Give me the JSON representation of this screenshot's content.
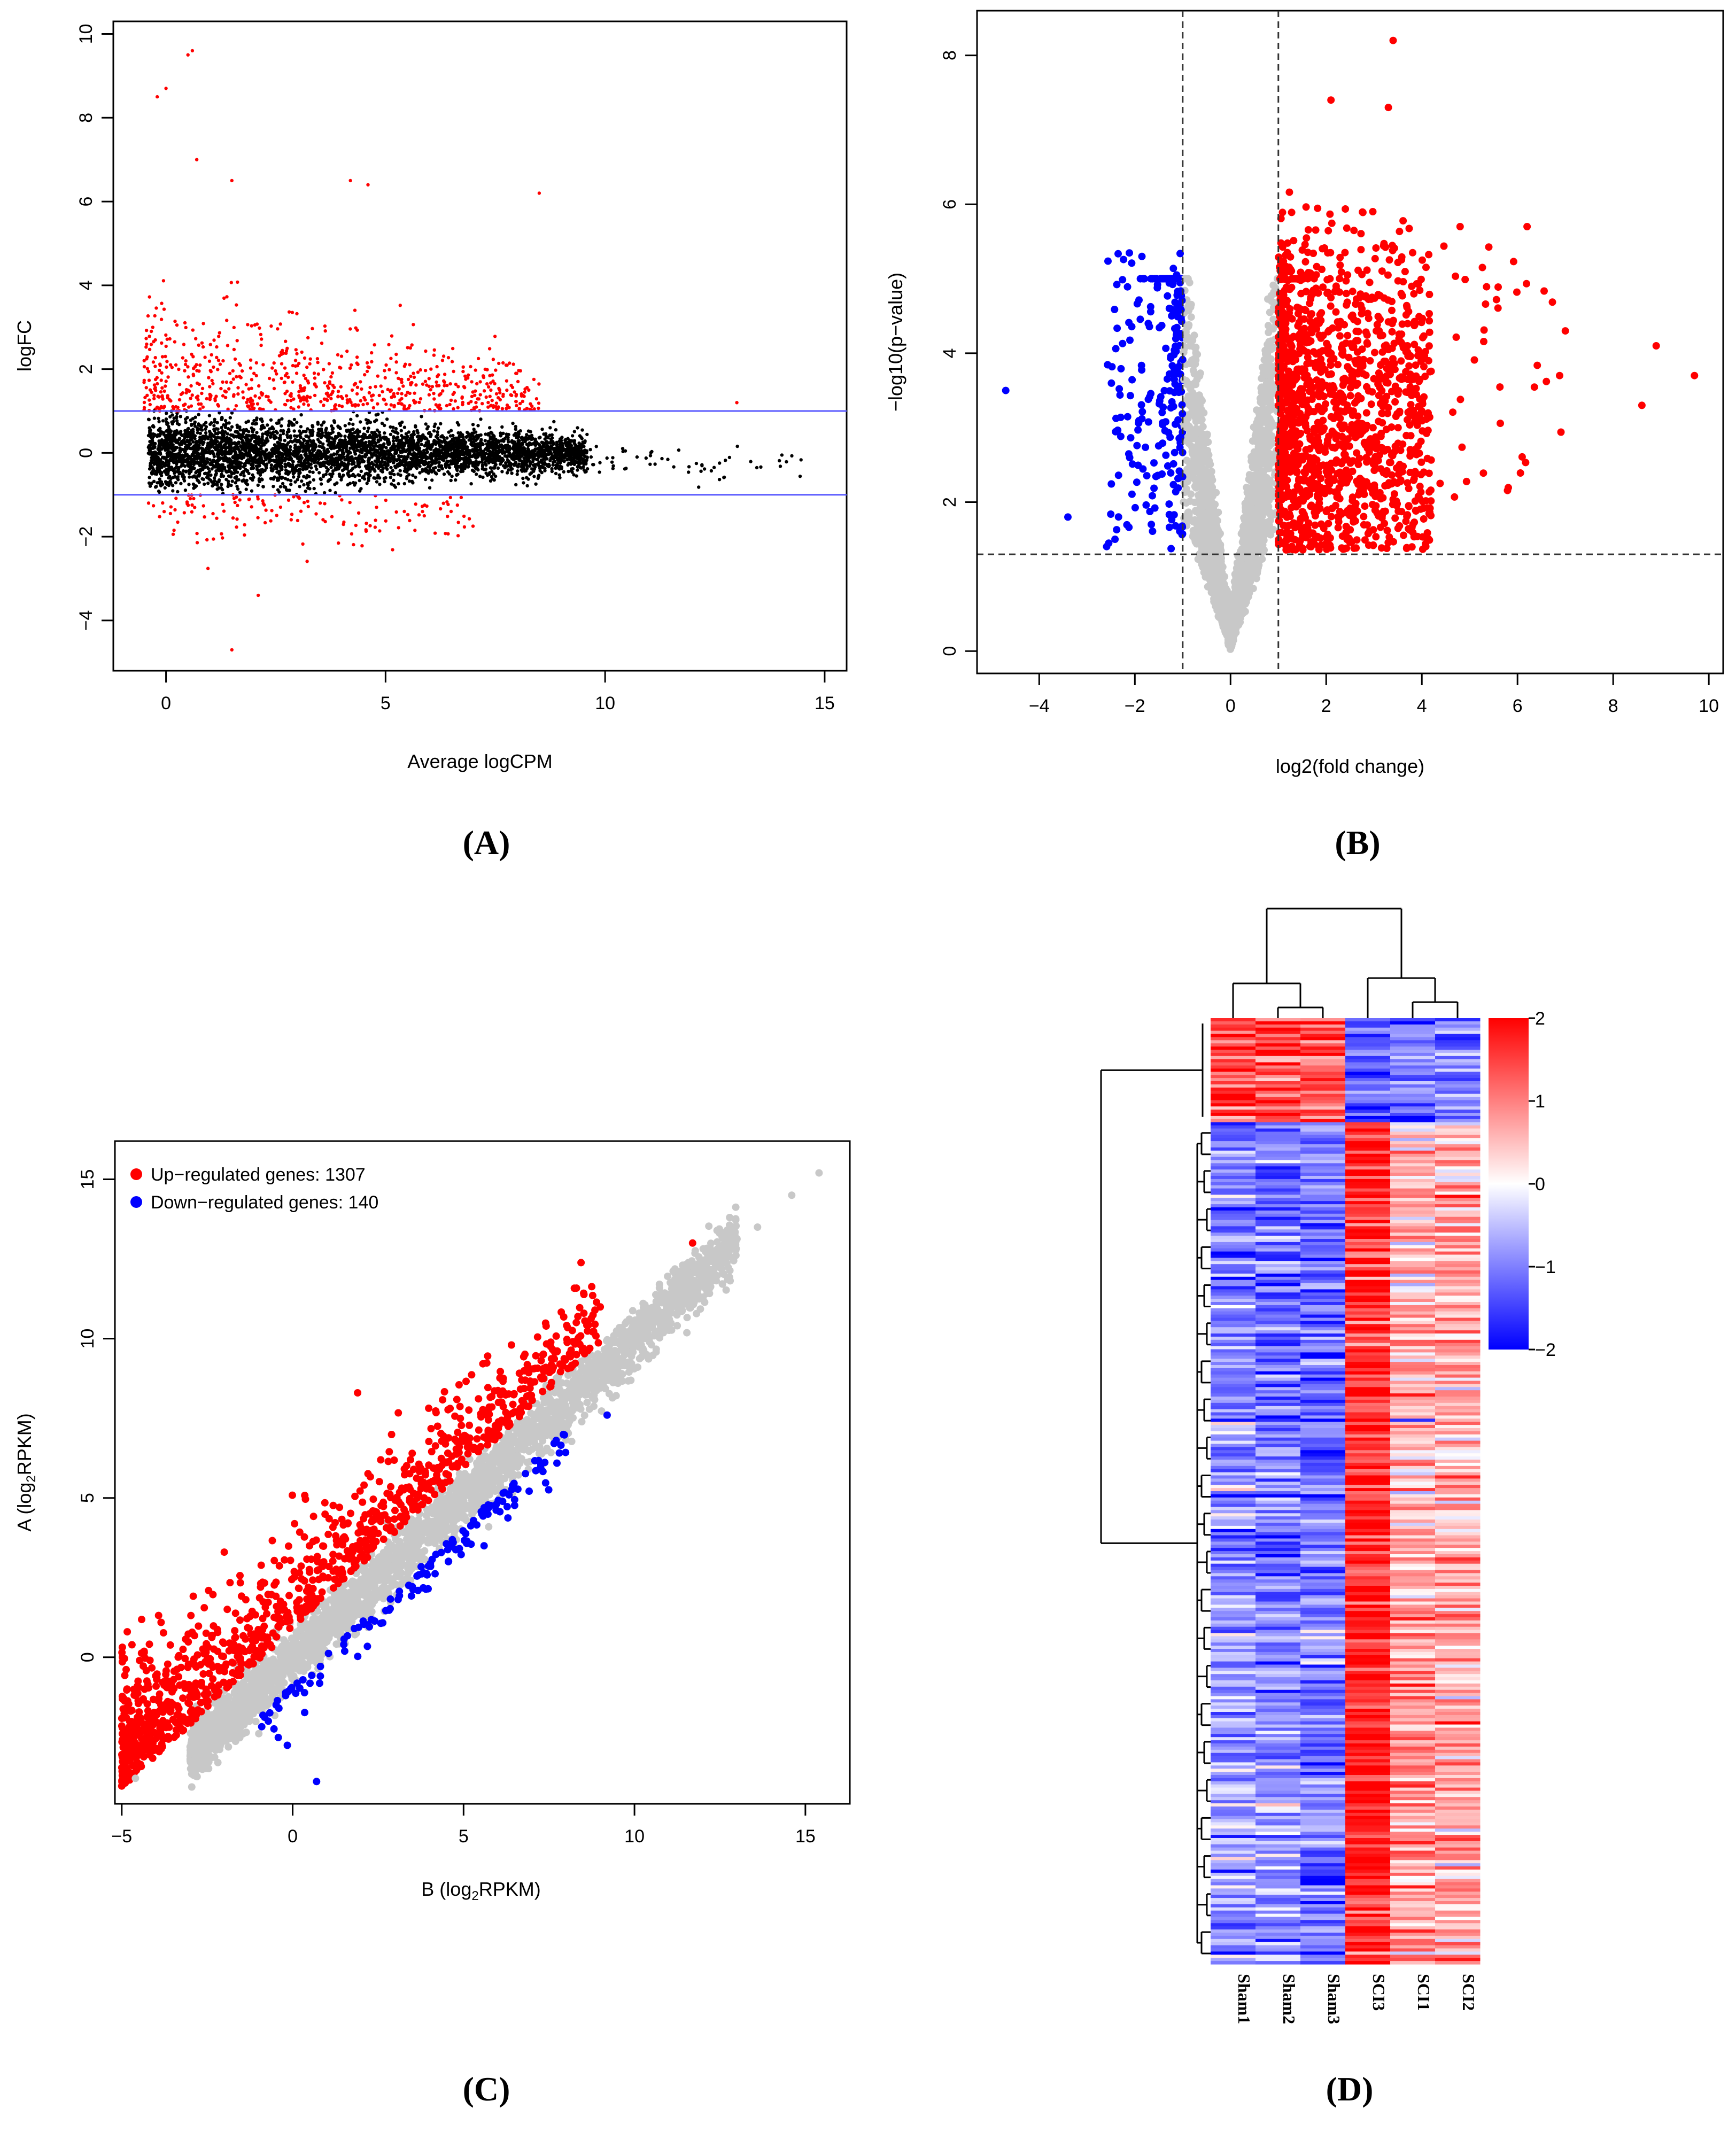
{
  "panels": {
    "A": "(A)",
    "B": "(B)",
    "C": "(C)",
    "D": "(D)"
  },
  "colors": {
    "up": "#ff0000",
    "down": "#0000ff",
    "nonsig": "#c8c8c8",
    "black": "#000000",
    "threshold_line": "#5a5aff"
  },
  "chart_data": [
    {
      "id": "A",
      "type": "scatter",
      "title": "",
      "xlabel": "Average logCPM",
      "ylabel": "logFC",
      "xlim": [
        -1.2,
        15.5
      ],
      "ylim": [
        -5.2,
        10.3
      ],
      "xticks": [
        0,
        5,
        10,
        15
      ],
      "yticks": [
        -4,
        -2,
        0,
        2,
        4,
        6,
        8,
        10
      ],
      "hlines": [
        1,
        -1
      ],
      "series": [
        {
          "name": "significant",
          "color": "#ff0000",
          "description": "red points where |logFC| > 1"
        },
        {
          "name": "not significant",
          "color": "#000000",
          "description": "black points where |logFC| <= 1"
        }
      ],
      "highlight_points": [
        [
          0.6,
          9.6
        ],
        [
          0.5,
          9.5
        ],
        [
          0.0,
          8.7
        ],
        [
          -0.2,
          8.5
        ],
        [
          0.7,
          7.0
        ],
        [
          1.5,
          6.5
        ],
        [
          4.2,
          6.5
        ],
        [
          4.6,
          6.4
        ],
        [
          8.5,
          6.2
        ],
        [
          1.5,
          -4.7
        ],
        [
          2.1,
          -3.4
        ],
        [
          13.0,
          1.2
        ]
      ]
    },
    {
      "id": "B",
      "type": "scatter",
      "title": "",
      "xlabel": "log2(fold change)",
      "ylabel": "−log10(p−value)",
      "xlim": [
        -5.3,
        10.3
      ],
      "ylim": [
        -0.3,
        8.6
      ],
      "xticks": [
        -4,
        -2,
        0,
        2,
        4,
        6,
        8,
        10
      ],
      "yticks": [
        0,
        2,
        4,
        6,
        8
      ],
      "vlines": [
        -1,
        1
      ],
      "hlines": [
        1.3
      ],
      "series": [
        {
          "name": "up",
          "color": "#ff0000"
        },
        {
          "name": "down",
          "color": "#0000ff"
        },
        {
          "name": "not significant",
          "color": "#c8c8c8"
        }
      ],
      "highlight_points": [
        [
          3.4,
          8.2
        ],
        [
          3.3,
          7.3
        ],
        [
          2.1,
          7.4
        ],
        [
          -4.7,
          3.5
        ],
        [
          -3.4,
          1.8
        ],
        [
          9.7,
          3.7
        ],
        [
          8.9,
          4.1
        ],
        [
          7.0,
          4.3
        ],
        [
          6.2,
          5.7
        ],
        [
          4.8,
          5.7
        ],
        [
          8.6,
          3.3
        ]
      ]
    },
    {
      "id": "C",
      "type": "scatter",
      "title": "",
      "xlabel": "B (log2RPKM)",
      "ylabel": "A (log2RPKM)",
      "xlim": [
        -5.2,
        16.3
      ],
      "ylim": [
        -4.6,
        16.2
      ],
      "xticks": [
        -5,
        0,
        5,
        10,
        15
      ],
      "yticks": [
        0,
        5,
        10,
        15
      ],
      "legend": [
        {
          "label": "Up−regulated genes: 1307",
          "color": "#ff0000"
        },
        {
          "label": "Down−regulated genes: 140",
          "color": "#0000ff"
        }
      ],
      "legend_position": "top-left",
      "series": [
        {
          "name": "Up-regulated genes",
          "count": 1307,
          "color": "#ff0000"
        },
        {
          "name": "Down-regulated genes",
          "count": 140,
          "color": "#0000ff"
        },
        {
          "name": "not significant",
          "color": "#c8c8c8"
        }
      ],
      "highlight_points": [
        [
          15.4,
          15.2
        ],
        [
          11.7,
          13.0
        ],
        [
          0.7,
          -3.9
        ],
        [
          -4.6,
          -3.8
        ],
        [
          1.9,
          8.3
        ],
        [
          6.4,
          9.8
        ]
      ]
    },
    {
      "id": "D",
      "type": "heatmap",
      "title": "",
      "columns": [
        "Sham1",
        "Sham2",
        "Sham3",
        "SCI3",
        "SCI1",
        "SCI2"
      ],
      "colorbar_ticks": [
        2,
        1,
        0,
        -1,
        -2
      ],
      "colorbar_range": [
        -2,
        2
      ],
      "colorbar_colors": [
        "#0000ff",
        "#ffffff",
        "#ff0000"
      ],
      "row_blocks": [
        {
          "fraction": 0.11,
          "pattern": "top cluster: Sham high, SCI low",
          "mean_z": [
            1.5,
            1.4,
            1.2,
            -1.3,
            -1.0,
            -0.9
          ]
        },
        {
          "fraction": 0.89,
          "pattern": "main cluster: Sham low, SCI high",
          "mean_z": [
            -0.9,
            -1.0,
            -1.1,
            1.7,
            0.6,
            0.6
          ]
        }
      ],
      "column_dendrogram": "Sham1 joins (Sham2,Sham3); SCI3 joins (SCI1,SCI2); two groups merge at top",
      "row_dendrogram": "two main row clusters"
    }
  ]
}
